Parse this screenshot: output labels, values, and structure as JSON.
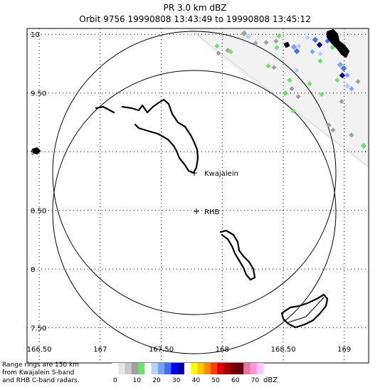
{
  "title": {
    "line1": "PR  3.0 km dBZ",
    "line2": "Orbit 9756 19990808 13:43:49 to 19990808 13:45:12"
  },
  "map": {
    "lon_range": [
      166.4,
      169.2
    ],
    "lat_range": [
      7.2,
      10.05
    ],
    "lon_ticks": [
      {
        "value": 166.5,
        "label": "166.50"
      },
      {
        "value": 167.0,
        "label": "167"
      },
      {
        "value": 167.5,
        "label": "167.50"
      },
      {
        "value": 168.0,
        "label": "168"
      },
      {
        "value": 168.5,
        "label": "168.50"
      },
      {
        "value": 169.0,
        "label": "169"
      }
    ],
    "lat_ticks": [
      {
        "value": 10.0,
        "label": "10"
      },
      {
        "value": 9.5,
        "label": "9.50"
      },
      {
        "value": 9.0,
        "label": "9"
      },
      {
        "value": 8.5,
        "label": "8.50"
      },
      {
        "value": 8.0,
        "label": "8"
      },
      {
        "value": 7.5,
        "label": "7.50"
      }
    ],
    "grid": "dotted",
    "sites": [
      {
        "name": "Kwajalein",
        "lon": 167.73,
        "lat": 8.72
      },
      {
        "name": "RHB",
        "lon": 167.7,
        "lat": 8.38
      }
    ],
    "range_rings_km": 150
  },
  "footnote": {
    "line1": "Range rings are 150 km",
    "line2": "from Kwajalein S-band",
    "line3": "and RHB C-band radars."
  },
  "colorbar": {
    "unit": "dBZ",
    "labels": [
      "0",
      "10",
      "20",
      "30",
      "40",
      "50",
      "60",
      "70"
    ],
    "colors": [
      "#ffffff",
      "#e6e6e6",
      "#c8c8c8",
      "#a0a0a0",
      "#6ee06e",
      "#ffffff",
      "#b4d2ff",
      "#78a0ff",
      "#3c6eff",
      "#0000ff",
      "#0000a0",
      "#ffffff",
      "#ffff00",
      "#ffc800",
      "#ff8c00",
      "#ff3c00",
      "#dc0000",
      "#a00000",
      "#780000",
      "#640014",
      "#e678a0",
      "#ff96dc",
      "#ffc8ff"
    ]
  }
}
